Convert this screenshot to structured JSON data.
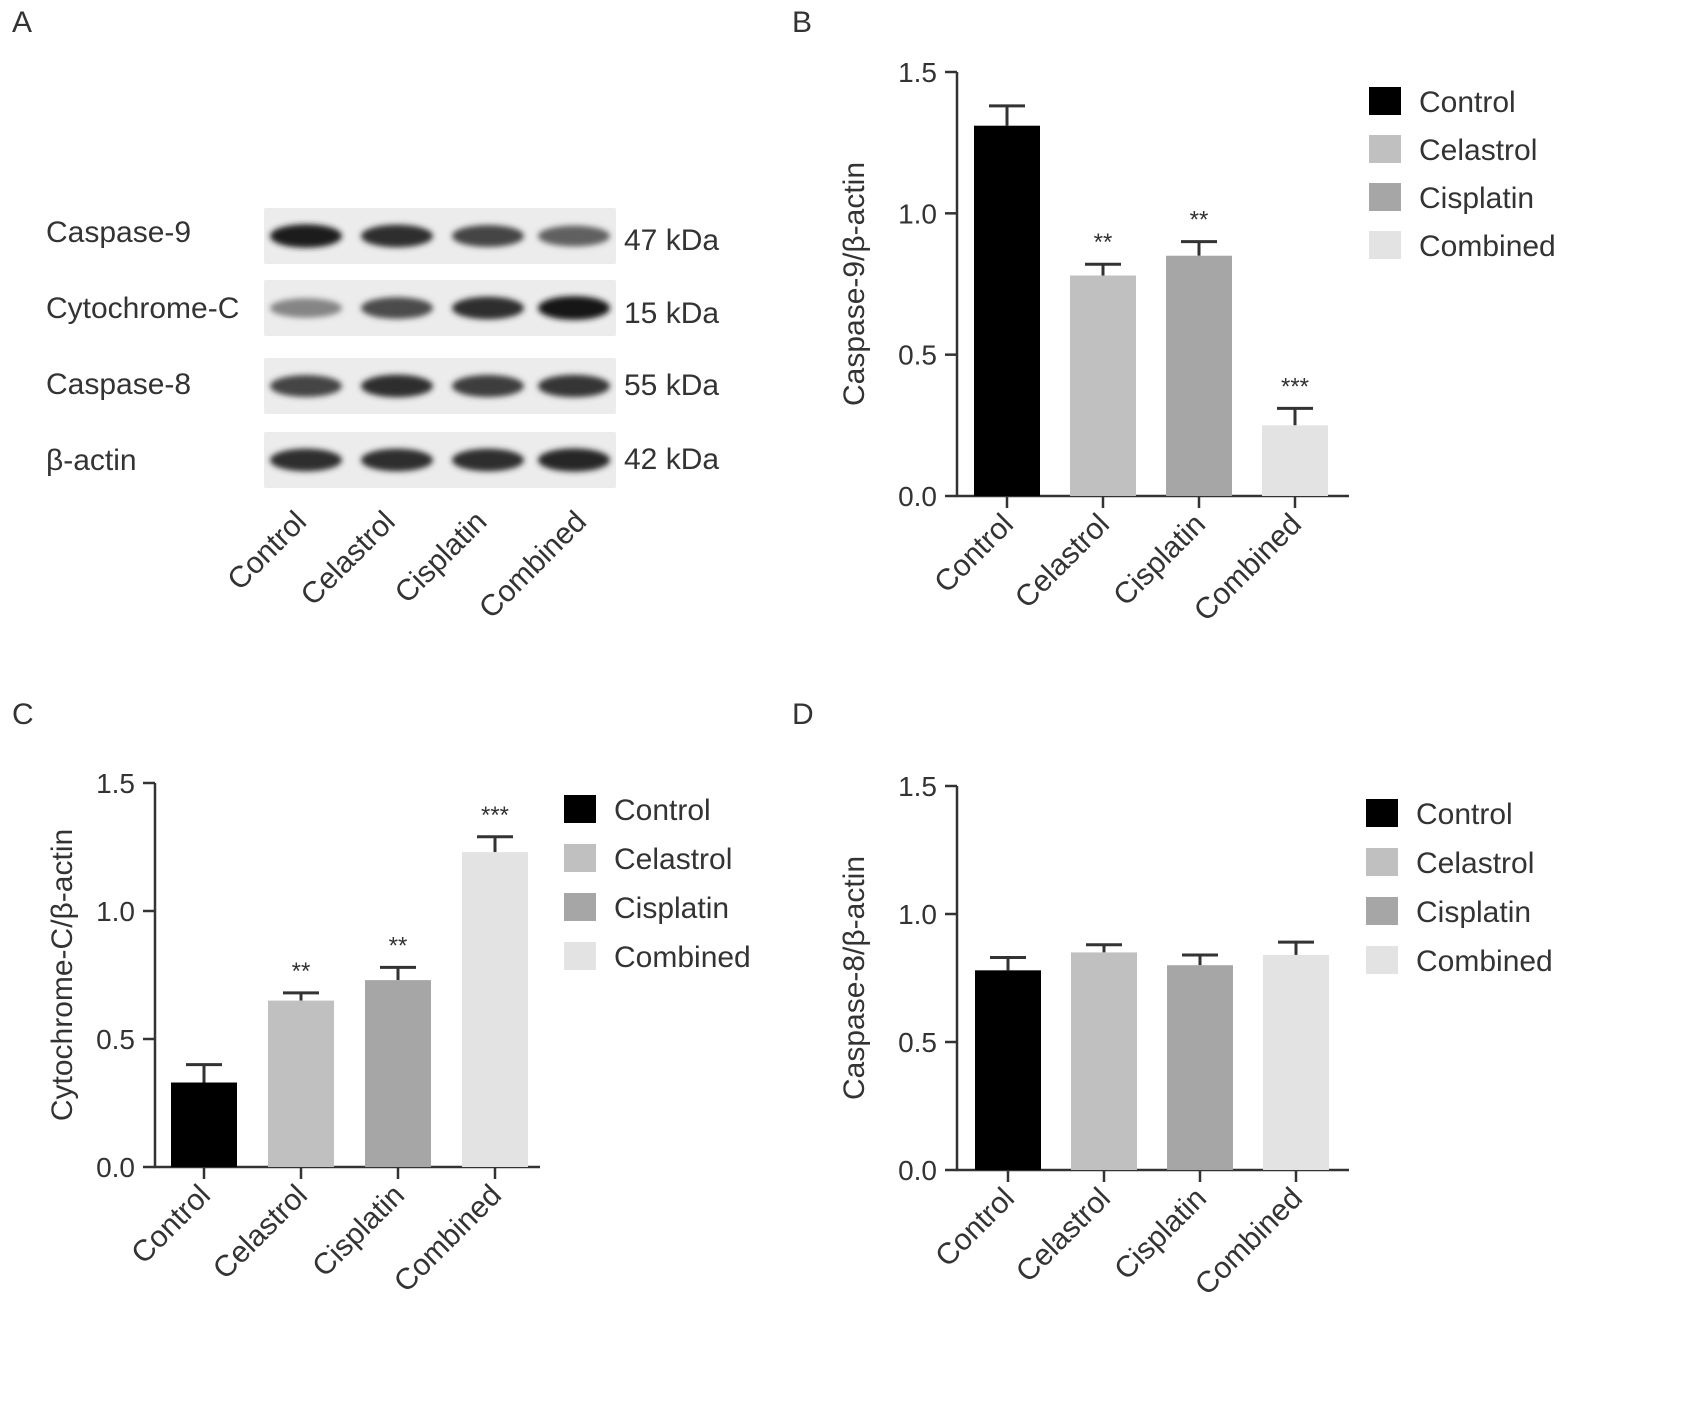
{
  "panels": {
    "a": {
      "letter": "A"
    },
    "b": {
      "letter": "B"
    },
    "c": {
      "letter": "C"
    },
    "d": {
      "letter": "D"
    }
  },
  "blot": {
    "rows": [
      {
        "protein": "Caspase-9",
        "size": "47 kDa",
        "intensities": [
          0.95,
          0.85,
          0.75,
          0.62
        ]
      },
      {
        "protein": "Cytochrome-C",
        "size": "15 kDa",
        "intensities": [
          0.45,
          0.72,
          0.85,
          0.98
        ]
      },
      {
        "protein": "Caspase-8",
        "size": "55 kDa",
        "intensities": [
          0.75,
          0.85,
          0.78,
          0.82
        ]
      },
      {
        "protein": "β-actin",
        "size": "42 kDa",
        "intensities": [
          0.85,
          0.85,
          0.85,
          0.9
        ]
      }
    ],
    "lanes": [
      "Control",
      "Celastrol",
      "Cisplatin",
      "Combined"
    ]
  },
  "colors": {
    "Control": "#000000",
    "Celastrol": "#c0c0c0",
    "Cisplatin": "#a6a6a6",
    "Combined": "#e3e3e3",
    "axis": "#333333"
  },
  "chart_data": [
    {
      "panel": "B",
      "type": "bar",
      "categories": [
        "Control",
        "Celastrol",
        "Cisplatin",
        "Combined"
      ],
      "values": [
        1.31,
        0.78,
        0.85,
        0.25
      ],
      "errors": [
        0.07,
        0.04,
        0.05,
        0.06
      ],
      "significance": [
        "",
        "**",
        "**",
        "***"
      ],
      "ylabel": "Caspase-9/β-actin",
      "ylim": [
        0,
        1.5
      ],
      "yticks": [
        "0.0",
        "0.5",
        "1.0",
        "1.5"
      ],
      "legend": [
        "Control",
        "Celastrol",
        "Cisplatin",
        "Combined"
      ],
      "legend_position": "right"
    },
    {
      "panel": "C",
      "type": "bar",
      "categories": [
        "Control",
        "Celastrol",
        "Cisplatin",
        "Combined"
      ],
      "values": [
        0.33,
        0.65,
        0.73,
        1.23
      ],
      "errors": [
        0.07,
        0.03,
        0.05,
        0.06
      ],
      "significance": [
        "",
        "**",
        "**",
        "***"
      ],
      "ylabel": "Cytochrome-C/β-actin",
      "ylim": [
        0,
        1.5
      ],
      "yticks": [
        "0.0",
        "0.5",
        "1.0",
        "1.5"
      ],
      "legend": [
        "Control",
        "Celastrol",
        "Cisplatin",
        "Combined"
      ],
      "legend_position": "right"
    },
    {
      "panel": "D",
      "type": "bar",
      "categories": [
        "Control",
        "Celastrol",
        "Cisplatin",
        "Combined"
      ],
      "values": [
        0.78,
        0.85,
        0.8,
        0.84
      ],
      "errors": [
        0.05,
        0.03,
        0.04,
        0.05
      ],
      "significance": [
        "",
        "",
        "",
        ""
      ],
      "ylabel": "Caspase-8/β-actin",
      "ylim": [
        0,
        1.5
      ],
      "yticks": [
        "0.0",
        "0.5",
        "1.0",
        "1.5"
      ],
      "legend": [
        "Control",
        "Celastrol",
        "Cisplatin",
        "Combined"
      ],
      "legend_position": "right"
    }
  ]
}
